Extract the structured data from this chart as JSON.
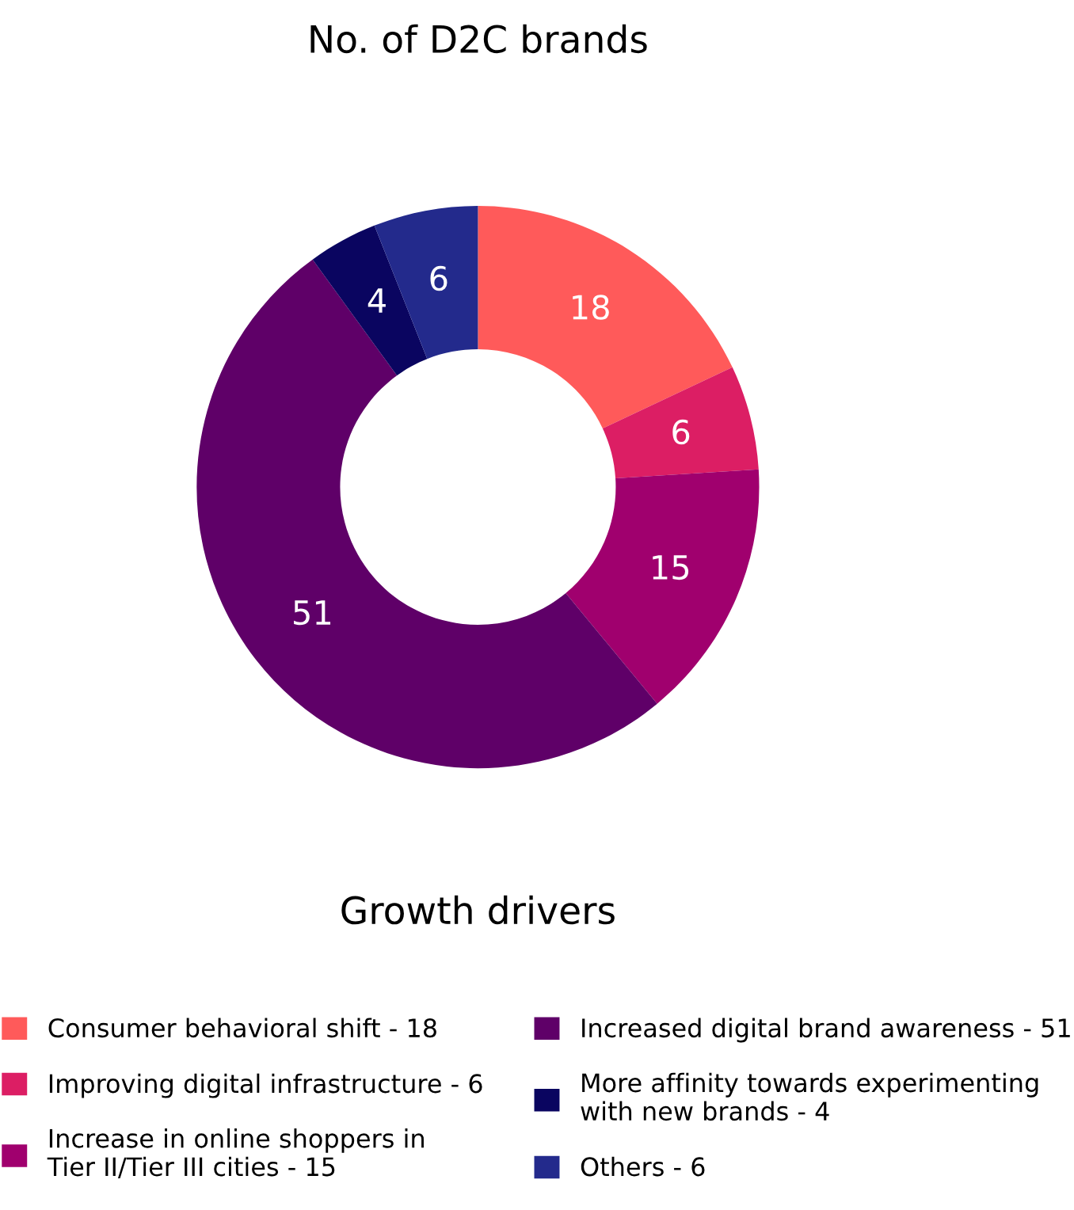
{
  "chart_data": {
    "type": "donut",
    "title": "No. of D2C brands",
    "legend_title": "Growth drivers",
    "categories": [
      "Consumer behavioral shift - 18",
      "Improving digital infrastructure - 6",
      "Increase in online shoppers in\nTier II/Tier III cities - 15",
      "Increased digital brand awareness - 51",
      "More affinity towards experimenting\nwith new brands - 4",
      "Others - 6"
    ],
    "values": [
      18,
      6,
      15,
      51,
      4,
      6
    ],
    "colors": [
      "#ff5a5a",
      "#dc1e64",
      "#a0006e",
      "#5f0068",
      "#0a0560",
      "#232a8c"
    ],
    "data_labels": true,
    "legend": "bottom"
  }
}
